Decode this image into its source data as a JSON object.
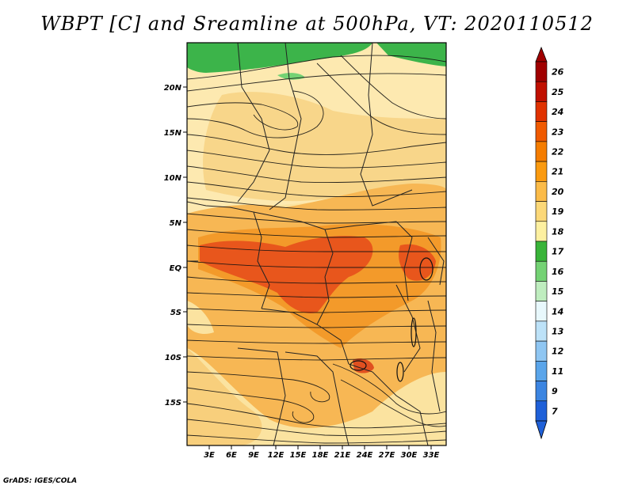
{
  "title": "WBPT [C] and Sreamline at 500hPa, VT: 2020110512",
  "credit": "GrADS: IGES/COLA",
  "map": {
    "lat_ticks": [
      "20N",
      "15N",
      "10N",
      "5N",
      "EQ",
      "5S",
      "10S",
      "15S"
    ],
    "lon_ticks": [
      "3E",
      "6E",
      "9E",
      "12E",
      "15E",
      "18E",
      "21E",
      "24E",
      "27E",
      "30E",
      "33E"
    ]
  },
  "colorbar": {
    "levels": [
      "26",
      "25",
      "24",
      "23",
      "22",
      "21",
      "20",
      "19",
      "18",
      "17",
      "16",
      "15",
      "14",
      "13",
      "12",
      "11",
      "9",
      "7"
    ],
    "colors": [
      "#a00000",
      "#c01000",
      "#e03200",
      "#f05a00",
      "#f57d00",
      "#fa9a10",
      "#fbbb48",
      "#fcd878",
      "#fdf0a0",
      "#39b439",
      "#74d274",
      "#bfedbf",
      "#e8f8fc",
      "#bde2f8",
      "#8fc6f2",
      "#5aa5ea",
      "#3c85e1",
      "#1f60d8"
    ]
  },
  "colors": {
    "warm_center": "#e8561c",
    "orange": "#f39a2a",
    "light_orange": "#f8c463",
    "pale_yellow": "#fbe3a0",
    "green": "#3cb44a"
  }
}
